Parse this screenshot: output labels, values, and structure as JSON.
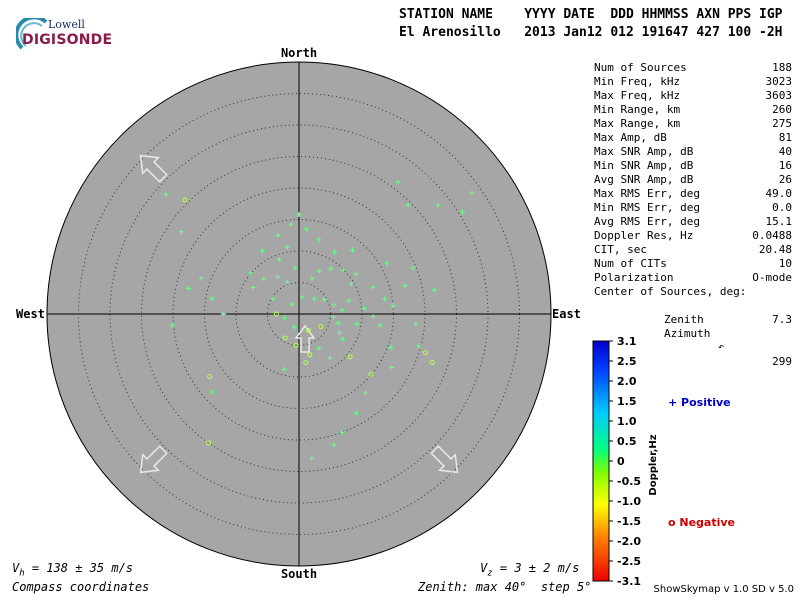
{
  "header": {
    "line1": "STATION NAME    YYYY DATE  DDD HHMMSS AXN PPS IGP",
    "line2": "El Arenosillo   2013 Jan12 012 191647 427 100 -2H"
  },
  "logo": {
    "top": "Lowell",
    "bottom": "DIGISONDE"
  },
  "compass": {
    "north": "North",
    "south": "South",
    "east": "East",
    "west": "West"
  },
  "stats": [
    {
      "label": "Num of Sources",
      "value": "188"
    },
    {
      "label": "Min Freq, kHz",
      "value": "3023"
    },
    {
      "label": "Max Freq, kHz",
      "value": "3603"
    },
    {
      "label": "Min Range, km",
      "value": "260"
    },
    {
      "label": "Max Range, km",
      "value": "275"
    },
    {
      "label": "Max Amp, dB",
      "value": "81"
    },
    {
      "label": "Max SNR Amp, dB",
      "value": "40"
    },
    {
      "label": "Min SNR Amp, dB",
      "value": "16"
    },
    {
      "label": "Avg SNR Amp, dB",
      "value": "26"
    },
    {
      "label": "Max RMS Err, deg",
      "value": "49.0"
    },
    {
      "label": "Min RMS Err, deg",
      "value": "0.0"
    },
    {
      "label": "Avg RMS Err, deg",
      "value": "15.1"
    },
    {
      "label": "Doppler Res, Hz",
      "value": "0.0488"
    },
    {
      "label": "CIT, sec",
      "value": "20.48"
    },
    {
      "label": "Num of CITs",
      "value": "10"
    },
    {
      "label": "Polarization",
      "value": "O-mode"
    }
  ],
  "center": {
    "title": "Center of Sources, deg:",
    "zenith_label": "Zenith",
    "zenith_value": "7.3",
    "azimuth_label": "Azimuth",
    "azimuth_value": "299"
  },
  "colorbar": {
    "ticks": [
      "3.1",
      "2.5",
      "2.0",
      "1.5",
      "1.0",
      "0.5",
      "0",
      "-0.5",
      "-1.0",
      "-1.5",
      "-2.0",
      "-2.5",
      "-3.1"
    ],
    "label": "Doppler,Hz",
    "positive": "+ Positive",
    "negative": "o Negative",
    "positive_color": "#0000cc",
    "negative_color": "#cc0000"
  },
  "bottom": {
    "vh": "V",
    "vh_sub": "h",
    "vh_rest": " = 138 ± 35 m/s",
    "vz": "V",
    "vz_sub": "z",
    "vz_rest": " = 3 ± 2 m/s",
    "coords": "Compass coordinates",
    "zenith": "Zenith: max 40°  step 5°",
    "version": "ShowSkymap v 1.0   SD v 5.0"
  },
  "chart_data": {
    "type": "scatter",
    "projection": "polar-zenith",
    "zenith_max_deg": 40,
    "zenith_step_deg": 5,
    "azimuth_reference": "North",
    "colorbar_range": [
      -3.1,
      3.1
    ],
    "velocity_arrows_deg": [
      135,
      225,
      315
    ],
    "points": [
      {
        "zen": 1.9,
        "az": 325,
        "sign": "+"
      },
      {
        "zen": 2.7,
        "az": 10,
        "sign": "+"
      },
      {
        "zen": 3.4,
        "az": 45,
        "sign": "+"
      },
      {
        "zen": 4.6,
        "az": 60,
        "sign": "+"
      },
      {
        "zen": 5.5,
        "az": 95,
        "sign": "+"
      },
      {
        "zen": 6.4,
        "az": 103,
        "sign": "+"
      },
      {
        "zen": 7.1,
        "az": 115,
        "sign": "+"
      },
      {
        "zen": 8.0,
        "az": 120,
        "sign": "+"
      },
      {
        "zen": 9.3,
        "az": 100,
        "sign": "+"
      },
      {
        "zen": 2.4,
        "az": 255,
        "sign": "+"
      },
      {
        "zen": 3.6,
        "az": 270,
        "sign": "-"
      },
      {
        "zen": 4.4,
        "az": 210,
        "sign": "-"
      },
      {
        "zen": 5.0,
        "az": 185,
        "sign": "-"
      },
      {
        "zen": 6.3,
        "az": 150,
        "sign": "+"
      },
      {
        "zen": 6.7,
        "az": 165,
        "sign": "-"
      },
      {
        "zen": 7.8,
        "az": 172,
        "sign": "-"
      },
      {
        "zen": 9.1,
        "az": 195,
        "sign": "+"
      },
      {
        "zen": 10.6,
        "az": 130,
        "sign": "-"
      },
      {
        "zen": 8.5,
        "az": 145,
        "sign": "+"
      },
      {
        "zen": 6.0,
        "az": 20,
        "sign": "+"
      },
      {
        "zen": 7.5,
        "az": 25,
        "sign": "+"
      },
      {
        "zen": 8.8,
        "az": 35,
        "sign": "+"
      },
      {
        "zen": 9.9,
        "az": 45,
        "sign": "+"
      },
      {
        "zen": 11.0,
        "az": 55,
        "sign": "+"
      },
      {
        "zen": 12.5,
        "az": 70,
        "sign": "+"
      },
      {
        "zen": 13.8,
        "az": 80,
        "sign": "+"
      },
      {
        "zen": 15.0,
        "az": 85,
        "sign": "+"
      },
      {
        "zen": 5.4,
        "az": 340,
        "sign": "+"
      },
      {
        "zen": 6.8,
        "az": 330,
        "sign": "+"
      },
      {
        "zen": 7.9,
        "az": 315,
        "sign": "+"
      },
      {
        "zen": 8.4,
        "az": 300,
        "sign": "+"
      },
      {
        "zen": 10.1,
        "az": 310,
        "sign": "+"
      },
      {
        "zen": 11.6,
        "az": 330,
        "sign": "+"
      },
      {
        "zen": 12.9,
        "az": 345,
        "sign": "+"
      },
      {
        "zen": 14.3,
        "az": 355,
        "sign": "+"
      },
      {
        "zen": 15.8,
        "az": 0,
        "sign": "+"
      },
      {
        "zen": 13.5,
        "az": 5,
        "sign": "+"
      },
      {
        "zen": 12.2,
        "az": 15,
        "sign": "+"
      },
      {
        "zen": 16.1,
        "az": 60,
        "sign": "+"
      },
      {
        "zen": 17.4,
        "az": 75,
        "sign": "+"
      },
      {
        "zen": 18.6,
        "az": 95,
        "sign": "+"
      },
      {
        "zen": 19.7,
        "az": 105,
        "sign": "+"
      },
      {
        "zen": 14.9,
        "az": 130,
        "sign": "-"
      },
      {
        "zen": 16.4,
        "az": 140,
        "sign": "+"
      },
      {
        "zen": 18.2,
        "az": 150,
        "sign": "+"
      },
      {
        "zen": 20.0,
        "az": 160,
        "sign": "+"
      },
      {
        "zen": 21.5,
        "az": 165,
        "sign": "+"
      },
      {
        "zen": 23.0,
        "az": 175,
        "sign": "+"
      },
      {
        "zen": 24.5,
        "az": 45,
        "sign": "+"
      },
      {
        "zen": 26.2,
        "az": 37,
        "sign": "+"
      },
      {
        "zen": 28.0,
        "az": 52,
        "sign": "+"
      },
      {
        "zen": 30.6,
        "az": 58,
        "sign": "+"
      },
      {
        "zen": 33.5,
        "az": 55,
        "sign": "+"
      },
      {
        "zen": 22.8,
        "az": 305,
        "sign": "+"
      },
      {
        "zen": 25.6,
        "az": 315,
        "sign": "-"
      },
      {
        "zen": 28.4,
        "az": 312,
        "sign": "+"
      },
      {
        "zen": 16.5,
        "az": 290,
        "sign": "+"
      },
      {
        "zen": 18.0,
        "az": 283,
        "sign": "+"
      },
      {
        "zen": 20.2,
        "az": 265,
        "sign": "+"
      },
      {
        "zen": 17.3,
        "az": 235,
        "sign": "-"
      },
      {
        "zen": 18.5,
        "az": 228,
        "sign": "+"
      },
      {
        "zen": 25.0,
        "az": 215,
        "sign": "-"
      },
      {
        "zen": 10.4,
        "az": 85,
        "sign": "+"
      },
      {
        "zen": 11.8,
        "az": 92,
        "sign": "+"
      },
      {
        "zen": 13.0,
        "az": 98,
        "sign": "+"
      },
      {
        "zen": 4.0,
        "az": 120,
        "sign": "-"
      },
      {
        "zen": 3.0,
        "az": 150,
        "sign": "-"
      },
      {
        "zen": 2.2,
        "az": 200,
        "sign": "+"
      },
      {
        "zen": 9.6,
        "az": 60,
        "sign": "+"
      },
      {
        "zen": 8.2,
        "az": 75,
        "sign": "+"
      },
      {
        "zen": 6.9,
        "az": 85,
        "sign": "+"
      },
      {
        "zen": 5.7,
        "az": 75,
        "sign": "+"
      },
      {
        "zen": 15.5,
        "az": 110,
        "sign": "+"
      },
      {
        "zen": 17.0,
        "az": 120,
        "sign": "+"
      },
      {
        "zen": 21.0,
        "az": 107,
        "sign": "-"
      },
      {
        "zen": 22.5,
        "az": 110,
        "sign": "-"
      },
      {
        "zen": 10.8,
        "az": 350,
        "sign": "+"
      },
      {
        "zen": 9.2,
        "az": 340,
        "sign": "+"
      },
      {
        "zen": 7.3,
        "az": 355,
        "sign": "+"
      },
      {
        "zen": 4.8,
        "az": 300,
        "sign": "+"
      },
      {
        "zen": 12.0,
        "az": 270,
        "sign": "+"
      },
      {
        "zen": 14.0,
        "az": 280,
        "sign": "+"
      },
      {
        "zen": 13.2,
        "az": 40,
        "sign": "+"
      },
      {
        "zen": 11.3,
        "az": 30,
        "sign": "+"
      },
      {
        "zen": 19.5,
        "az": 68,
        "sign": "+"
      },
      {
        "zen": 21.8,
        "az": 80,
        "sign": "+"
      }
    ]
  }
}
